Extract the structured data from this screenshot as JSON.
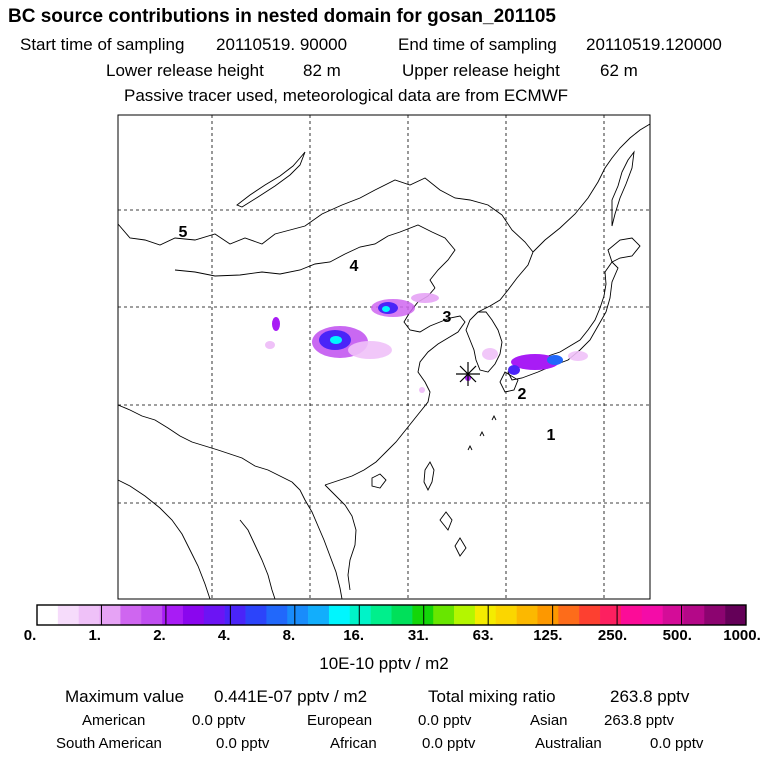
{
  "header": {
    "title": "BC  source contributions in nested domain for gosan_201105",
    "start_label": "Start time of sampling",
    "start_value": "20110519. 90000",
    "end_label": "End time of sampling",
    "end_value": "20110519.120000",
    "lower_label": "Lower release height",
    "lower_value": "82 m",
    "upper_label": "Upper release height",
    "upper_value": "62 m",
    "note": "Passive tracer used, meteorological data are from ECMWF"
  },
  "map": {
    "region_labels": [
      "5",
      "4",
      "3",
      "2",
      "1"
    ],
    "receptor_marker": "asterisk-marker"
  },
  "colorbar": {
    "colors": [
      "#ffffff",
      "#f6dcfb",
      "#efc1f8",
      "#e6a3f5",
      "#cf66f0",
      "#c04ef0",
      "#a81cf5",
      "#8a06ee",
      "#6c14f4",
      "#4a24f8",
      "#2c44fa",
      "#2168fb",
      "#198cfb",
      "#12aefc",
      "#00f6fe",
      "#00f3c8",
      "#00ef8c",
      "#00e05a",
      "#14d60a",
      "#68e600",
      "#b4f600",
      "#f4ec00",
      "#fbd600",
      "#fcb800",
      "#fd9800",
      "#fd6c1a",
      "#fd4030",
      "#fd2060",
      "#fc0c98",
      "#f40ca8",
      "#d40c98",
      "#b40888",
      "#8c0470",
      "#640058"
    ],
    "ticks": [
      "0.",
      "1.",
      "2.",
      "4.",
      "8.",
      "16.",
      "31.",
      "63.",
      "125.",
      "250.",
      "500.",
      "1000."
    ],
    "units": "10E-10 pptv / m2"
  },
  "stats": {
    "max_label": "Maximum value",
    "max_value": "0.441E-07 pptv / m2",
    "total_label": "Total mixing ratio",
    "total_value": "263.8 pptv",
    "regions": [
      {
        "name": "American",
        "value": "0.0 pptv"
      },
      {
        "name": "European",
        "value": "0.0 pptv"
      },
      {
        "name": "Asian",
        "value": "263.8 pptv"
      },
      {
        "name": "South American",
        "value": "0.0 pptv"
      },
      {
        "name": "African",
        "value": "0.0 pptv"
      },
      {
        "name": "Australian",
        "value": "0.0 pptv"
      }
    ]
  }
}
